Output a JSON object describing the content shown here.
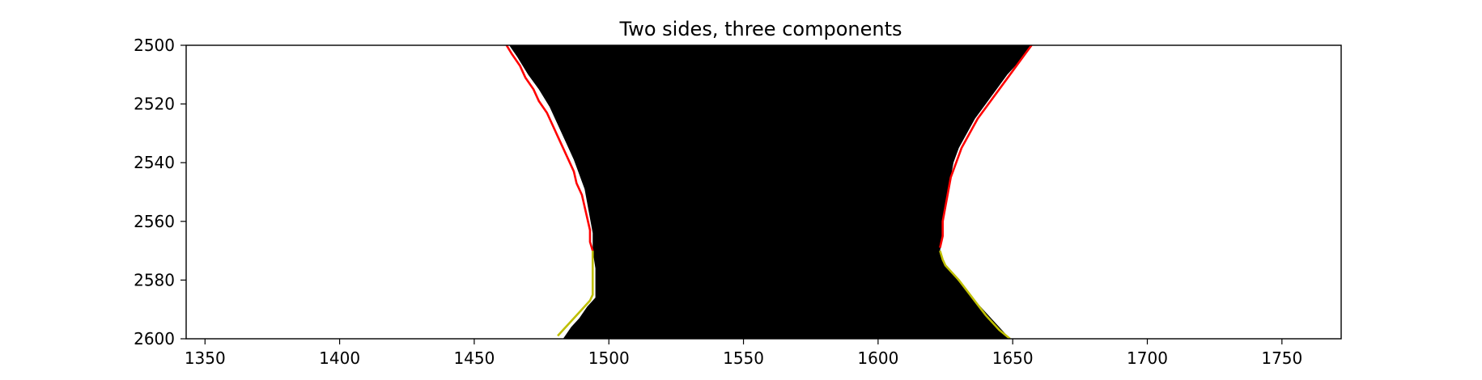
{
  "chart_data": {
    "type": "line",
    "title": "Two sides, three components",
    "xlabel": "",
    "ylabel": "",
    "xlim": [
      1343,
      1772
    ],
    "ylim": [
      2600,
      2500
    ],
    "x_ticks": [
      1350,
      1400,
      1450,
      1500,
      1550,
      1600,
      1650,
      1700,
      1750
    ],
    "y_ticks": [
      2500,
      2520,
      2540,
      2560,
      2580,
      2600
    ],
    "grid": false,
    "legend": "none",
    "background_image": "black mask region between the two boundaries on white",
    "colors": {
      "mask": "#000000",
      "upper_boundary": "#ff0000",
      "lower_boundary": "#bfbf00",
      "background": "#ffffff"
    },
    "mask": {
      "left_edge": [
        [
          1463,
          2500
        ],
        [
          1466,
          2504
        ],
        [
          1470,
          2510
        ],
        [
          1474,
          2515
        ],
        [
          1478,
          2521
        ],
        [
          1481,
          2527
        ],
        [
          1484,
          2533
        ],
        [
          1487,
          2539
        ],
        [
          1489,
          2544
        ],
        [
          1491,
          2549
        ],
        [
          1492,
          2554
        ],
        [
          1493,
          2559
        ],
        [
          1494,
          2564
        ],
        [
          1494,
          2570
        ],
        [
          1495,
          2576
        ],
        [
          1495,
          2582
        ],
        [
          1495,
          2586
        ],
        [
          1492,
          2589
        ],
        [
          1489,
          2593
        ],
        [
          1486,
          2596
        ],
        [
          1483,
          2600
        ]
      ],
      "right_edge": [
        [
          1657,
          2500
        ],
        [
          1653,
          2505
        ],
        [
          1648,
          2510
        ],
        [
          1644,
          2515
        ],
        [
          1640,
          2520
        ],
        [
          1636,
          2525
        ],
        [
          1633,
          2530
        ],
        [
          1630,
          2535
        ],
        [
          1628,
          2540
        ],
        [
          1627,
          2545
        ],
        [
          1626,
          2550
        ],
        [
          1625,
          2555
        ],
        [
          1624,
          2560
        ],
        [
          1624,
          2565
        ],
        [
          1623,
          2570
        ],
        [
          1624,
          2573
        ],
        [
          1625,
          2575
        ],
        [
          1634,
          2585
        ],
        [
          1642,
          2593
        ],
        [
          1649,
          2600
        ]
      ]
    },
    "series": [
      {
        "color": "#ff0000",
        "x": [
          1462,
          1464,
          1467,
          1469,
          1472,
          1474,
          1477,
          1479,
          1481,
          1483,
          1485,
          1487,
          1488,
          1490,
          1491,
          1492,
          1493,
          1493,
          1494
        ],
        "y": [
          2500,
          2503,
          2507,
          2511,
          2515,
          2519,
          2523,
          2527,
          2531,
          2535,
          2539,
          2543,
          2547,
          2551,
          2555,
          2559,
          2563,
          2567,
          2570
        ]
      },
      {
        "color": "#bfbf00",
        "x": [
          1494,
          1494,
          1494,
          1494,
          1493,
          1490,
          1487,
          1484,
          1481
        ],
        "y": [
          2570,
          2575,
          2580,
          2585,
          2587,
          2590,
          2593,
          2596,
          2599
        ]
      },
      {
        "color": "#ff0000",
        "x": [
          1657,
          1653,
          1649,
          1645,
          1641,
          1637,
          1634,
          1631,
          1629,
          1627,
          1626,
          1625,
          1624,
          1624,
          1623
        ],
        "y": [
          2500,
          2505,
          2510,
          2515,
          2520,
          2525,
          2530,
          2535,
          2540,
          2545,
          2550,
          2555,
          2560,
          2565,
          2569
        ]
      },
      {
        "color": "#bfbf00",
        "x": [
          1623,
          1624,
          1625,
          1630,
          1635,
          1640,
          1645,
          1649
        ],
        "y": [
          2570,
          2573,
          2575,
          2580,
          2586,
          2592,
          2597,
          2600
        ]
      }
    ]
  }
}
